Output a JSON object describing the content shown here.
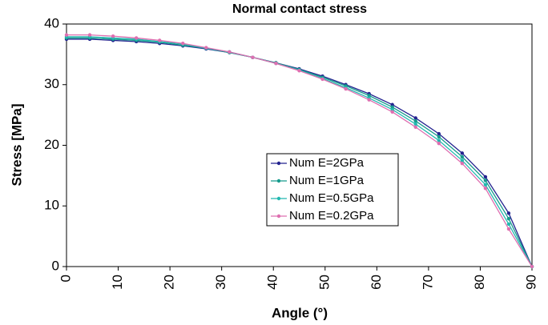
{
  "chart_data": {
    "type": "line",
    "title": "Normal contact stress",
    "xlabel": "Angle (°)",
    "ylabel": "Stress [MPa]",
    "x": [
      0,
      4.5,
      9,
      13.5,
      18,
      22.5,
      27,
      31.5,
      36,
      40.5,
      45,
      49.5,
      54,
      58.5,
      63,
      67.5,
      72,
      76.5,
      81,
      85.5,
      90
    ],
    "series": [
      {
        "name": "Num E=2GPa",
        "color": "#23238f",
        "values": [
          37.5,
          37.5,
          37.3,
          37.1,
          36.8,
          36.4,
          35.9,
          35.3,
          34.5,
          33.6,
          32.6,
          31.4,
          30.0,
          28.5,
          26.7,
          24.5,
          21.9,
          18.7,
          14.8,
          8.8,
          0
        ]
      },
      {
        "name": "Num E=1GPa",
        "color": "#159a8c",
        "values": [
          37.7,
          37.7,
          37.5,
          37.3,
          37.0,
          36.5,
          36.0,
          35.3,
          34.5,
          33.6,
          32.5,
          31.2,
          29.8,
          28.2,
          26.3,
          24.0,
          21.4,
          18.1,
          14.2,
          7.9,
          0
        ]
      },
      {
        "name": "Num E=0.5GPa",
        "color": "#22b8b0",
        "values": [
          37.9,
          37.9,
          37.7,
          37.5,
          37.1,
          36.7,
          36.0,
          35.4,
          34.5,
          33.5,
          32.4,
          31.0,
          29.5,
          27.8,
          25.9,
          23.5,
          20.8,
          17.5,
          13.5,
          7.0,
          0
        ]
      },
      {
        "name": "Num E=0.2GPa",
        "color": "#de6fb0",
        "values": [
          38.2,
          38.2,
          38.0,
          37.7,
          37.3,
          36.8,
          36.1,
          35.4,
          34.5,
          33.5,
          32.3,
          30.9,
          29.3,
          27.5,
          25.5,
          23.0,
          20.3,
          17.0,
          12.9,
          6.2,
          0
        ]
      }
    ],
    "xlim": [
      0,
      90
    ],
    "xticks": [
      0,
      10,
      20,
      30,
      40,
      50,
      60,
      70,
      80,
      90
    ],
    "ylim": [
      0,
      40
    ],
    "yticks": [
      0,
      10,
      20,
      30,
      40
    ],
    "grid": false,
    "legend": "center"
  }
}
